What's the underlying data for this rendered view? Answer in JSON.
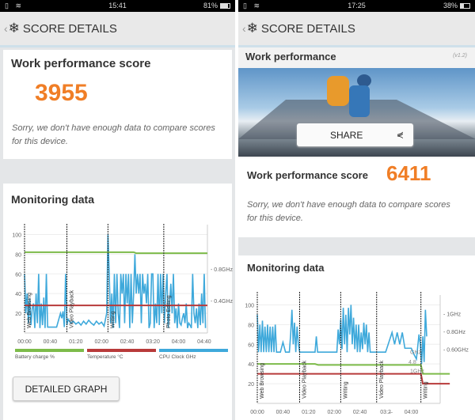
{
  "left": {
    "status": {
      "time": "15:41",
      "battery": "81%",
      "battery_level": 0.81
    },
    "header": {
      "title": "SCORE DETAILS"
    },
    "score_card": {
      "title": "Work performance score",
      "score": "3955",
      "message": "Sorry, we don't have enough data to compare scores for this device."
    },
    "monitoring": {
      "title": "Monitoring data",
      "detailed_graph_label": "DETAILED GRAPH"
    }
  },
  "right": {
    "status": {
      "time": "17:25",
      "battery": "38%",
      "battery_level": 0.38
    },
    "header": {
      "title": "SCORE DETAILS"
    },
    "work_card": {
      "title": "Work performance",
      "version": "(v1.2)",
      "share_label": "SHARE"
    },
    "score_row": {
      "label": "Work performance score",
      "score": "6411",
      "message": "Sorry, we don't have enough data to compare scores for this device."
    },
    "monitoring": {
      "title": "Monitoring data"
    }
  },
  "colors": {
    "battery": "#7dbb4a",
    "temperature": "#b83a3a",
    "cpu": "#3fa9db",
    "score": "#f07e26"
  },
  "chart_data": [
    {
      "type": "line",
      "y_ticks": [
        "100",
        "80",
        "60",
        "40",
        "20"
      ],
      "ylim": [
        0,
        110
      ],
      "x_ticks": [
        "00:00",
        "00:40",
        "01:20",
        "02:00",
        "02:40",
        "03:20",
        "04:00",
        "04:40"
      ],
      "xlim": [
        0,
        285
      ],
      "right_ticks": [
        {
          "label": "0.8GHz",
          "y": 65
        },
        {
          "label": "0.4GHz",
          "y": 33
        }
      ],
      "markers": [
        {
          "t": 0,
          "label": "Web Browsing"
        },
        {
          "t": 66,
          "label": "Video Playback"
        },
        {
          "t": 130,
          "label": "Writing"
        },
        {
          "t": 217,
          "label": "Photo Editing"
        }
      ],
      "legend": [
        "Battery charge %",
        "Temperature °C",
        "CPU Clock GHz"
      ],
      "series": [
        {
          "key": "battery",
          "x": [
            0,
            170,
            174,
            285
          ],
          "y": [
            82,
            82,
            81,
            81
          ]
        },
        {
          "key": "temperature",
          "x": [
            0,
            285
          ],
          "y": [
            28,
            28
          ]
        },
        {
          "key": "cpu",
          "x": [
            0,
            2,
            4,
            6,
            8,
            10,
            12,
            14,
            16,
            18,
            20,
            22,
            24,
            26,
            28,
            30,
            32,
            34,
            36,
            40,
            44,
            50,
            56,
            58,
            60,
            62,
            64,
            66,
            68,
            72,
            76,
            80,
            84,
            88,
            92,
            96,
            100,
            104,
            108,
            112,
            116,
            120,
            124,
            128,
            130,
            132,
            134,
            136,
            138,
            140,
            142,
            144,
            146,
            148,
            150,
            152,
            154,
            156,
            158,
            160,
            162,
            164,
            166,
            168,
            170,
            172,
            174,
            176,
            178,
            180,
            182,
            184,
            186,
            188,
            190,
            192,
            194,
            196,
            198,
            200,
            202,
            204,
            206,
            208,
            210,
            212,
            214,
            216,
            218,
            220,
            222,
            224,
            226,
            228,
            230,
            232,
            234,
            236,
            238,
            240,
            242,
            244,
            246,
            248,
            250,
            252,
            254,
            256,
            258,
            260,
            262,
            264,
            266,
            268,
            270,
            272,
            274,
            276,
            278,
            280,
            282
          ],
          "y": [
            60,
            20,
            40,
            10,
            35,
            8,
            25,
            30,
            5,
            40,
            10,
            60,
            5,
            30,
            8,
            36,
            5,
            60,
            6,
            6,
            6,
            6,
            20,
            15,
            22,
            6,
            60,
            8,
            14,
            10,
            12,
            9,
            11,
            8,
            12,
            9,
            13,
            10,
            8,
            12,
            9,
            11,
            7,
            20,
            100,
            60,
            10,
            40,
            5,
            60,
            10,
            60,
            20,
            5,
            60,
            40,
            60,
            10,
            60,
            30,
            60,
            5,
            60,
            10,
            40,
            80,
            40,
            60,
            40,
            60,
            10,
            60,
            40,
            50,
            30,
            60,
            5,
            10,
            60,
            60,
            5,
            30,
            10,
            60,
            8,
            60,
            20,
            60,
            10,
            40,
            60,
            5,
            30,
            50,
            20,
            60,
            10,
            25,
            5,
            30,
            10,
            8,
            15,
            20,
            10,
            30,
            5,
            10,
            8,
            5,
            60,
            20,
            10,
            25,
            5,
            30,
            8,
            40,
            10,
            60,
            5
          ]
        }
      ]
    },
    {
      "type": "line",
      "y_ticks": [
        "100",
        "80",
        "60",
        "40",
        "20"
      ],
      "ylim": [
        0,
        110
      ],
      "x_ticks": [
        "00:00",
        "00:40",
        "01:20",
        "02:00",
        "02:40",
        "03:2̶",
        "04:00"
      ],
      "xlim": [
        0,
        285
      ],
      "right_ticks": [
        {
          "label": "1GHz",
          "y": 91
        },
        {
          "label": "0.8GHz",
          "y": 73
        },
        {
          "label": "0.60GHz",
          "y": 55
        }
      ],
      "markers": [
        {
          "t": 0,
          "label": "Web Browsing"
        },
        {
          "t": 66,
          "label": "Video Playback"
        },
        {
          "t": 130,
          "label": "Writing"
        },
        {
          "t": 186,
          "label": "Video Playback"
        },
        {
          "t": 255,
          "label": "Writing"
        }
      ],
      "annotations": [
        "GHz",
        "4.8",
        "1GHz"
      ],
      "series": [
        {
          "key": "battery",
          "x": [
            0,
            90,
            95,
            255,
            258,
            300
          ],
          "y": [
            40,
            40,
            39,
            39,
            30,
            30
          ]
        },
        {
          "key": "temperature",
          "x": [
            0,
            255,
            258,
            300
          ],
          "y": [
            30,
            30,
            20,
            20
          ]
        },
        {
          "key": "cpu",
          "x": [
            0,
            2,
            4,
            6,
            8,
            10,
            12,
            14,
            16,
            18,
            20,
            22,
            24,
            26,
            28,
            30,
            36,
            40,
            44,
            50,
            52,
            54,
            56,
            58,
            60,
            62,
            64,
            66,
            70,
            80,
            90,
            92,
            94,
            110,
            124,
            126,
            128,
            130,
            132,
            134,
            136,
            138,
            140,
            142,
            144,
            146,
            148,
            150,
            152,
            154,
            156,
            158,
            160,
            162,
            164,
            166,
            168,
            170,
            172,
            174,
            176,
            178,
            180,
            182,
            184,
            186,
            188,
            190,
            196,
            200,
            210,
            214,
            218,
            222,
            226,
            230,
            234,
            240,
            244,
            248,
            252,
            254,
            256,
            258,
            260,
            262,
            264
          ],
          "y": [
            90,
            52,
            80,
            52,
            84,
            52,
            78,
            52,
            80,
            52,
            78,
            52,
            78,
            52,
            80,
            52,
            52,
            62,
            52,
            52,
            70,
            95,
            60,
            82,
            52,
            78,
            60,
            52,
            52,
            52,
            52,
            68,
            52,
            52,
            52,
            75,
            60,
            85,
            55,
            97,
            60,
            90,
            52,
            97,
            70,
            100,
            60,
            87,
            55,
            80,
            52,
            80,
            52,
            72,
            55,
            82,
            60,
            80,
            52,
            72,
            52,
            52,
            52,
            52,
            52,
            52,
            52,
            52,
            52,
            52,
            72,
            60,
            72,
            60,
            72,
            56,
            56,
            56,
            50,
            45,
            70,
            60,
            40,
            68,
            42,
            95,
            68
          ]
        }
      ]
    }
  ]
}
